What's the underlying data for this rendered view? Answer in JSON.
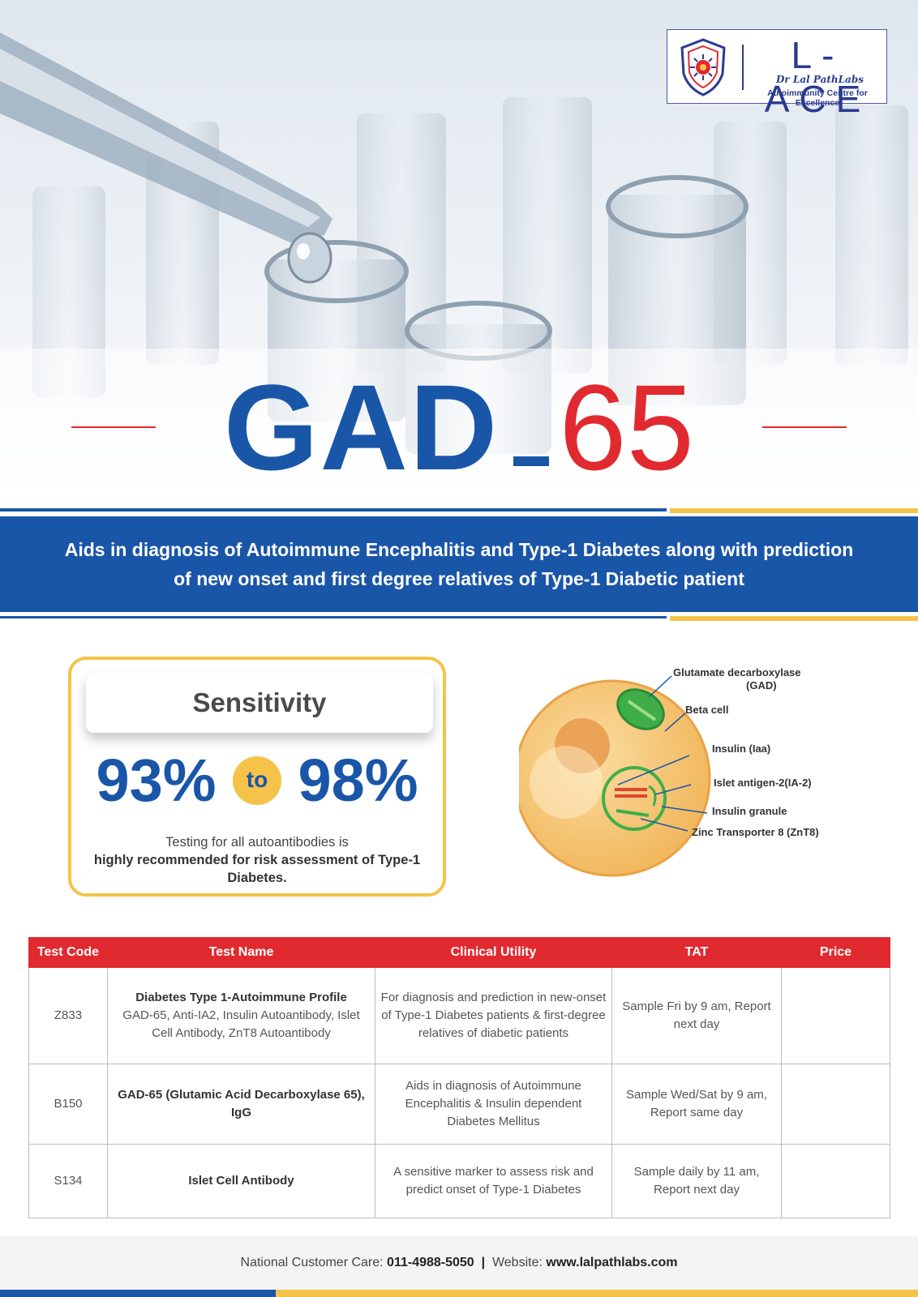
{
  "logo": {
    "title": "L-ACE",
    "brand": "Dr Lal PathLabs",
    "tagline": "Autoimmunity Centre for Excellence"
  },
  "hero": {
    "title_main": "GAD",
    "title_num": "65"
  },
  "banner": {
    "text": "Aids in diagnosis of Autoimmune Encephalitis and Type-1 Diabetes along with prediction of new onset and first degree relatives of Type-1 Diabetic patient"
  },
  "sensitivity": {
    "label": "Sensitivity",
    "low": "93%",
    "connector": "to",
    "high": "98%",
    "note_plain": "Testing for all autoantibodies is",
    "note_bold": "highly recommended for risk assessment of Type-1 Diabetes."
  },
  "diagram": {
    "labels": [
      "Glutamate decarboxylase",
      "(GAD)",
      "Beta cell",
      "Insulin (Iaa)",
      "Islet antigen-2(IA-2)",
      "Insulin granule",
      "Zinc Transporter 8 (ZnT8)"
    ]
  },
  "table": {
    "headers": [
      "Test Code",
      "Test Name",
      "Clinical Utility",
      "TAT",
      "Price"
    ],
    "rows": [
      {
        "code": "Z833",
        "name": "Diabetes Type 1-Autoimmune Profile",
        "name_sub": "GAD-65, Anti-IA2, Insulin Autoantibody, Islet Cell Antibody, ZnT8 Autoantibody",
        "utility": "For diagnosis and prediction in new-onset of Type-1 Diabetes patients & first-degree relatives of diabetic patients",
        "tat": "Sample Fri by 9 am, Report next day",
        "price": ""
      },
      {
        "code": "B150",
        "name": "GAD-65 (Glutamic Acid Decarboxylase 65), IgG",
        "name_sub": "",
        "utility": "Aids in diagnosis of Autoimmune Encephalitis & Insulin dependent Diabetes Mellitus",
        "tat": "Sample Wed/Sat by 9 am, Report same day",
        "price": ""
      },
      {
        "code": "S134",
        "name": "Islet Cell Antibody",
        "name_sub": "",
        "utility": "A sensitive marker to assess risk and predict onset of Type-1 Diabetes",
        "tat": "Sample daily by 11 am, Report next day",
        "price": ""
      }
    ]
  },
  "footer": {
    "care_label": "National Customer Care:",
    "care_number": "011-4988-5050",
    "separator": "|",
    "web_label": "Website:",
    "web_url": "www.lalpathlabs.com"
  },
  "colors": {
    "blue": "#1a56a8",
    "red": "#e02a2f",
    "gold": "#f5c34a"
  }
}
